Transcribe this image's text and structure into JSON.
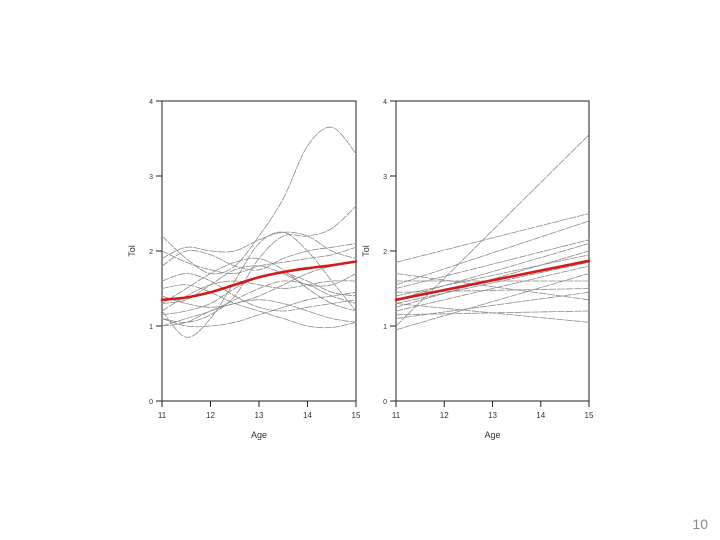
{
  "page": {
    "number": "10"
  },
  "colors": {
    "individual": "#8c8c8c",
    "mean": "#d21a1a",
    "axis": "#222222"
  },
  "chart_data": [
    {
      "type": "line",
      "xlabel": "Age",
      "ylabel": "Tol",
      "xlim": [
        11,
        15
      ],
      "ylim": [
        0,
        4
      ],
      "xticks": [
        "11",
        "12",
        "13",
        "14",
        "15"
      ],
      "yticks": [
        "0",
        "1",
        "2",
        "3",
        "4"
      ],
      "x": [
        11,
        11.5,
        12,
        12.5,
        13,
        13.5,
        14,
        14.5,
        15
      ],
      "smoothing": "smooth",
      "series": [
        {
          "role": "individual",
          "values": [
            2.2,
            1.9,
            1.7,
            1.8,
            2.2,
            2.7,
            3.4,
            3.65,
            3.3
          ]
        },
        {
          "role": "individual",
          "values": [
            1.2,
            0.85,
            1.1,
            1.6,
            2.1,
            2.25,
            2.0,
            1.6,
            1.2
          ]
        },
        {
          "role": "individual",
          "values": [
            1.1,
            1.05,
            1.15,
            1.4,
            1.9,
            2.2,
            2.2,
            2.3,
            2.6
          ]
        },
        {
          "role": "individual",
          "values": [
            1.8,
            2.0,
            1.95,
            1.8,
            1.75,
            1.9,
            2.0,
            2.05,
            2.1
          ]
        },
        {
          "role": "individual",
          "values": [
            2.0,
            1.85,
            1.75,
            1.7,
            1.8,
            1.85,
            1.9,
            1.95,
            2.05
          ]
        },
        {
          "role": "individual",
          "values": [
            1.3,
            1.5,
            1.7,
            1.85,
            1.9,
            1.75,
            1.5,
            1.3,
            1.2
          ]
        },
        {
          "role": "individual",
          "values": [
            1.15,
            1.2,
            1.3,
            1.5,
            1.65,
            1.7,
            1.6,
            1.45,
            1.4
          ]
        },
        {
          "role": "individual",
          "values": [
            1.4,
            1.3,
            1.25,
            1.3,
            1.4,
            1.55,
            1.7,
            1.8,
            1.85
          ]
        },
        {
          "role": "individual",
          "values": [
            1.6,
            1.7,
            1.6,
            1.4,
            1.25,
            1.2,
            1.25,
            1.3,
            1.35
          ]
        },
        {
          "role": "individual",
          "values": [
            1.0,
            1.05,
            1.2,
            1.3,
            1.35,
            1.3,
            1.2,
            1.1,
            1.05
          ]
        },
        {
          "role": "individual",
          "values": [
            1.1,
            1.0,
            1.0,
            1.05,
            1.15,
            1.25,
            1.35,
            1.4,
            1.45
          ]
        },
        {
          "role": "individual",
          "values": [
            1.5,
            1.55,
            1.45,
            1.3,
            1.2,
            1.1,
            1.0,
            0.98,
            1.05
          ]
        },
        {
          "role": "individual",
          "values": [
            1.9,
            2.05,
            2.0,
            2.0,
            2.15,
            2.25,
            2.2,
            2.0,
            1.9
          ]
        },
        {
          "role": "individual",
          "values": [
            1.3,
            1.35,
            1.55,
            1.75,
            1.8,
            1.7,
            1.55,
            1.55,
            1.7
          ]
        },
        {
          "role": "individual",
          "values": [
            1.2,
            1.4,
            1.55,
            1.6,
            1.55,
            1.5,
            1.55,
            1.6,
            1.6
          ]
        },
        {
          "role": "individual",
          "values": [
            1.0,
            1.1,
            1.2,
            1.35,
            1.5,
            1.6,
            1.55,
            1.4,
            1.3
          ]
        },
        {
          "role": "mean",
          "values": [
            1.35,
            1.38,
            1.45,
            1.55,
            1.65,
            1.72,
            1.77,
            1.81,
            1.86
          ]
        }
      ]
    },
    {
      "type": "line",
      "xlabel": "Age",
      "ylabel": "Tol",
      "xlim": [
        11,
        15
      ],
      "ylim": [
        0,
        4
      ],
      "xticks": [
        "11",
        "12",
        "13",
        "14",
        "15"
      ],
      "yticks": [
        "0",
        "1",
        "2",
        "3",
        "4"
      ],
      "x": [
        11,
        15
      ],
      "smoothing": "linear",
      "series": [
        {
          "role": "individual",
          "values": [
            1.0,
            3.55
          ]
        },
        {
          "role": "individual",
          "values": [
            1.85,
            2.5
          ]
        },
        {
          "role": "individual",
          "values": [
            1.55,
            2.4
          ]
        },
        {
          "role": "individual",
          "values": [
            1.5,
            2.15
          ]
        },
        {
          "role": "individual",
          "values": [
            1.35,
            2.1
          ]
        },
        {
          "role": "individual",
          "values": [
            1.25,
            2.0
          ]
        },
        {
          "role": "individual",
          "values": [
            1.4,
            1.95
          ]
        },
        {
          "role": "individual",
          "values": [
            1.3,
            1.85
          ]
        },
        {
          "role": "individual",
          "values": [
            1.2,
            1.8
          ]
        },
        {
          "role": "individual",
          "values": [
            1.6,
            1.6
          ]
        },
        {
          "role": "individual",
          "values": [
            1.7,
            1.35
          ]
        },
        {
          "role": "individual",
          "values": [
            1.45,
            1.5
          ]
        },
        {
          "role": "individual",
          "values": [
            1.15,
            1.2
          ]
        },
        {
          "role": "individual",
          "values": [
            1.3,
            1.05
          ]
        },
        {
          "role": "individual",
          "values": [
            0.95,
            1.7
          ]
        },
        {
          "role": "individual",
          "values": [
            1.1,
            1.45
          ]
        },
        {
          "role": "mean",
          "values": [
            1.35,
            1.87
          ]
        }
      ]
    }
  ]
}
